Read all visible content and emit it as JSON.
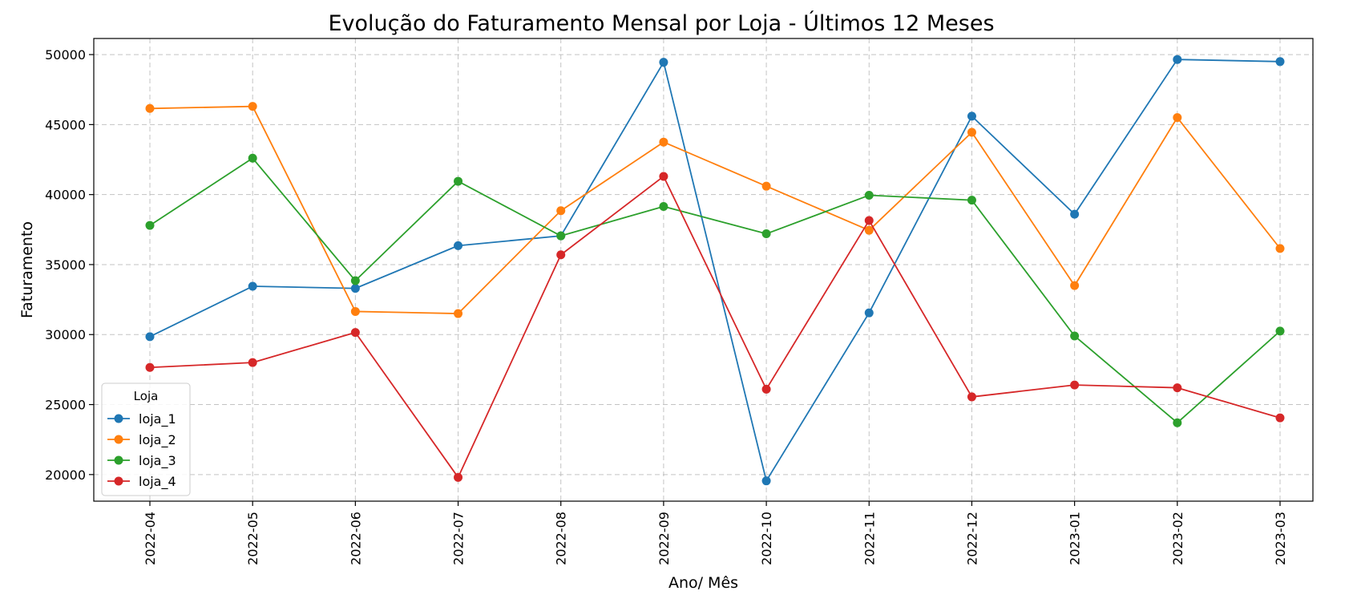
{
  "chart_data": {
    "type": "line",
    "title": "Evolução do Faturamento Mensal por Loja - Últimos 12 Meses",
    "xlabel": "Ano/ Mês",
    "ylabel": "Faturamento",
    "categories": [
      "2022-04",
      "2022-05",
      "2022-06",
      "2022-07",
      "2022-08",
      "2022-09",
      "2022-10",
      "2022-11",
      "2022-12",
      "2023-01",
      "2023-02",
      "2023-03"
    ],
    "yticks": [
      20000,
      25000,
      30000,
      35000,
      40000,
      45000,
      50000
    ],
    "ylim": [
      18100,
      51150
    ],
    "grid": true,
    "legend": {
      "title": "Loja",
      "placement": "lower-left"
    },
    "series": [
      {
        "name": "loja_1",
        "color": "#1f77b4",
        "values": [
          29850,
          33450,
          33300,
          36350,
          37050,
          49450,
          19550,
          31550,
          45600,
          38600,
          49650,
          49500
        ]
      },
      {
        "name": "loja_2",
        "color": "#ff7f0e",
        "values": [
          46150,
          46300,
          31650,
          31500,
          38850,
          43750,
          40600,
          37450,
          44450,
          33500,
          45500,
          36150
        ]
      },
      {
        "name": "loja_3",
        "color": "#2ca02c",
        "values": [
          37800,
          42600,
          33850,
          40950,
          37050,
          39150,
          37200,
          39950,
          39600,
          29900,
          23700,
          30250
        ]
      },
      {
        "name": "loja_4",
        "color": "#d62728",
        "values": [
          27650,
          28000,
          30150,
          19800,
          35700,
          41300,
          26100,
          38150,
          25550,
          26400,
          26200,
          24050
        ]
      }
    ]
  }
}
